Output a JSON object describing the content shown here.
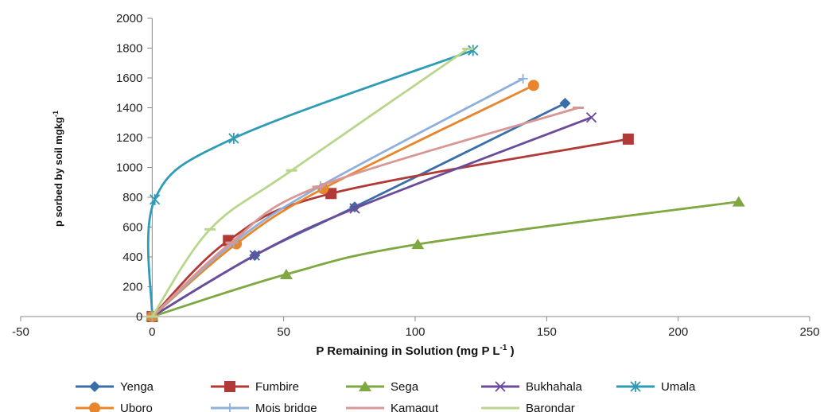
{
  "chart_data": {
    "type": "line",
    "xlabel": "P Remaining in Solution (mg P L-1 )",
    "ylabel": "p sorbed by soil mgkg-1",
    "xlim": [
      -50,
      250
    ],
    "ylim": [
      0,
      2000
    ],
    "xticks": [
      -50,
      0,
      50,
      100,
      150,
      200,
      250
    ],
    "yticks": [
      0,
      200,
      400,
      600,
      800,
      1000,
      1200,
      1400,
      1600,
      1800,
      2000
    ],
    "grid": false,
    "legend_position": "bottom",
    "series": [
      {
        "name": "Yenga",
        "color": "#3a6ea8",
        "marker": "diamond",
        "points": [
          [
            0,
            0
          ],
          [
            39,
            410
          ],
          [
            77,
            735
          ],
          [
            157,
            1430
          ]
        ]
      },
      {
        "name": "Fumbire",
        "color": "#b23a36",
        "marker": "square",
        "points": [
          [
            0,
            0
          ],
          [
            29,
            510
          ],
          [
            68,
            825
          ],
          [
            181,
            1190
          ]
        ]
      },
      {
        "name": "Sega",
        "color": "#7fa843",
        "marker": "triangle",
        "points": [
          [
            0,
            0
          ],
          [
            51,
            283
          ],
          [
            101,
            485
          ],
          [
            223,
            770
          ]
        ]
      },
      {
        "name": "Bukhahala",
        "color": "#6b4c9a",
        "marker": "x",
        "points": [
          [
            0,
            0
          ],
          [
            39,
            410
          ],
          [
            77,
            725
          ],
          [
            167,
            1335
          ]
        ]
      },
      {
        "name": "Umala",
        "color": "#2f9bb5",
        "marker": "star",
        "points": [
          [
            0,
            0
          ],
          [
            1,
            785
          ],
          [
            31,
            1195
          ],
          [
            122,
            1785
          ]
        ]
      },
      {
        "name": "Uboro",
        "color": "#e8862e",
        "marker": "circle",
        "points": [
          [
            0,
            0
          ],
          [
            32,
            488
          ],
          [
            65,
            858
          ],
          [
            145,
            1550
          ]
        ]
      },
      {
        "name": "Mois bridge",
        "color": "#8fb0dc",
        "marker": "plus",
        "points": [
          [
            0,
            0
          ],
          [
            31,
            495
          ],
          [
            64,
            875
          ],
          [
            141,
            1595
          ]
        ]
      },
      {
        "name": "Kamagut",
        "color": "#d99694",
        "marker": "dash",
        "points": [
          [
            0,
            0
          ],
          [
            30,
            495
          ],
          [
            63,
            870
          ],
          [
            162,
            1400
          ]
        ]
      },
      {
        "name": "Barondar",
        "color": "#b8d68c",
        "marker": "dash",
        "points": [
          [
            0,
            0
          ],
          [
            22,
            585
          ],
          [
            53,
            980
          ],
          [
            120,
            1795
          ]
        ]
      }
    ]
  }
}
